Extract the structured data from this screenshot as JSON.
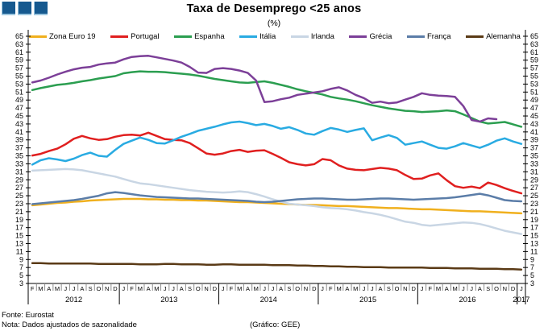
{
  "header": {
    "title": "Taxa de Desemprego <25 anos",
    "subtitle": "(%)"
  },
  "logo": {
    "square_color": "#16598F",
    "edge_color": "#9CC6DF"
  },
  "footer": {
    "source": "Fonte: Eurostat",
    "note": "Nota: Dados ajustados de sazonalidade",
    "credit": "(Gráfico: GEE)"
  },
  "chart_data": {
    "type": "line",
    "title": "Taxa de Desemprego <25 anos",
    "ylabel": "%",
    "ylim": [
      3,
      65
    ],
    "ytick_step": 2,
    "grid": false,
    "legend_position": "top",
    "x_months": [
      "F",
      "M",
      "A",
      "M",
      "J",
      "J",
      "A",
      "S",
      "O",
      "N",
      "D",
      "J",
      "F",
      "M",
      "A",
      "M",
      "J",
      "J",
      "A",
      "S",
      "O",
      "N",
      "D",
      "J",
      "F",
      "M",
      "A",
      "M",
      "J",
      "J",
      "A",
      "S",
      "O",
      "N",
      "D",
      "J",
      "F",
      "M",
      "A",
      "M",
      "J",
      "J",
      "A",
      "S",
      "O",
      "N",
      "D",
      "J",
      "F",
      "M",
      "A",
      "M",
      "J",
      "J",
      "A",
      "S",
      "O",
      "N",
      "D",
      "J"
    ],
    "x_years": [
      {
        "label": "2012",
        "start": 0,
        "count": 11
      },
      {
        "label": "2013",
        "start": 11,
        "count": 12
      },
      {
        "label": "2014",
        "start": 23,
        "count": 12
      },
      {
        "label": "2015",
        "start": 35,
        "count": 12
      },
      {
        "label": "2016",
        "start": 47,
        "count": 12
      },
      {
        "label": "2017",
        "start": 59,
        "count": 1
      }
    ],
    "series": [
      {
        "name": "Zona Euro 19",
        "color": "#F0B01E",
        "values": [
          22.6,
          22.8,
          23.0,
          23.2,
          23.3,
          23.5,
          23.6,
          23.8,
          23.9,
          24.0,
          24.1,
          24.2,
          24.2,
          24.2,
          24.1,
          24.1,
          24.0,
          24.0,
          23.9,
          23.9,
          23.8,
          23.8,
          23.7,
          23.6,
          23.5,
          23.4,
          23.4,
          23.3,
          23.2,
          23.1,
          23.0,
          22.9,
          22.8,
          22.7,
          22.7,
          22.6,
          22.5,
          22.4,
          22.4,
          22.3,
          22.2,
          22.1,
          22.0,
          21.9,
          21.9,
          21.8,
          21.7,
          21.6,
          21.6,
          21.5,
          21.4,
          21.3,
          21.2,
          21.1,
          21.1,
          21.0,
          20.9,
          20.8,
          20.7,
          20.6
        ]
      },
      {
        "name": "Portugal",
        "color": "#E01F1F",
        "values": [
          35.1,
          35.5,
          36.2,
          36.8,
          37.9,
          39.3,
          40.0,
          39.4,
          39.0,
          39.2,
          39.8,
          40.2,
          40.3,
          40.1,
          40.8,
          40.0,
          39.2,
          39.0,
          38.9,
          38.2,
          36.9,
          35.6,
          35.3,
          35.6,
          36.2,
          36.5,
          36.0,
          36.3,
          36.4,
          35.5,
          34.5,
          33.4,
          32.9,
          32.6,
          32.9,
          34.2,
          33.9,
          32.6,
          31.8,
          31.5,
          31.4,
          31.7,
          32.0,
          31.8,
          31.4,
          30.2,
          29.2,
          29.3,
          30.1,
          30.6,
          28.9,
          27.4,
          27.0,
          27.3,
          26.9,
          28.3,
          27.7,
          26.9,
          26.2,
          25.6
        ]
      },
      {
        "name": "Espanha",
        "color": "#2B9E50",
        "values": [
          51.5,
          52.0,
          52.4,
          52.8,
          53.0,
          53.3,
          53.7,
          54.0,
          54.4,
          54.7,
          55.0,
          55.7,
          56.0,
          56.2,
          56.1,
          56.1,
          56.0,
          55.8,
          55.6,
          55.4,
          55.1,
          54.7,
          54.3,
          54.0,
          53.7,
          53.4,
          53.3,
          53.5,
          53.7,
          53.3,
          52.8,
          52.3,
          51.7,
          51.2,
          50.8,
          50.4,
          49.8,
          49.4,
          49.1,
          48.7,
          48.2,
          47.7,
          47.3,
          46.9,
          46.6,
          46.3,
          46.2,
          46.0,
          46.1,
          46.2,
          46.4,
          46.2,
          45.4,
          44.5,
          43.6,
          43.1,
          43.3,
          43.5,
          42.9,
          42.3
        ]
      },
      {
        "name": "Itália",
        "color": "#29ABE2",
        "values": [
          32.8,
          33.9,
          34.4,
          34.1,
          33.7,
          34.3,
          35.2,
          35.8,
          35.0,
          34.8,
          36.5,
          38.0,
          38.8,
          39.6,
          39.0,
          38.2,
          38.1,
          38.9,
          39.8,
          40.5,
          41.3,
          41.8,
          42.3,
          42.9,
          43.4,
          43.6,
          43.2,
          42.7,
          43.0,
          42.5,
          41.8,
          42.2,
          41.5,
          40.6,
          40.3,
          41.2,
          42.0,
          41.6,
          41.0,
          41.5,
          41.9,
          38.9,
          39.6,
          40.2,
          39.5,
          37.8,
          38.2,
          38.6,
          37.8,
          37.0,
          36.8,
          37.4,
          38.2,
          37.6,
          37.0,
          37.8,
          38.8,
          39.4,
          38.6,
          38.0
        ]
      },
      {
        "name": "Irlanda",
        "color": "#C9D6E4",
        "values": [
          31.3,
          31.4,
          31.5,
          31.6,
          31.7,
          31.6,
          31.4,
          31.0,
          30.6,
          30.2,
          29.8,
          29.2,
          28.6,
          28.1,
          27.9,
          27.6,
          27.3,
          27.0,
          26.7,
          26.4,
          26.2,
          26.0,
          25.9,
          25.8,
          25.9,
          26.1,
          25.9,
          25.4,
          24.8,
          24.1,
          23.5,
          23.0,
          22.8,
          22.6,
          22.4,
          22.1,
          21.9,
          21.8,
          21.6,
          21.3,
          20.9,
          20.6,
          20.2,
          19.7,
          19.1,
          18.5,
          18.2,
          17.7,
          17.5,
          17.7,
          17.9,
          18.1,
          18.3,
          18.2,
          17.9,
          17.4,
          16.8,
          16.2,
          15.8,
          15.4
        ]
      },
      {
        "name": "Grécia",
        "color": "#7C3F98",
        "values": [
          53.4,
          53.9,
          54.6,
          55.4,
          56.1,
          56.7,
          57.1,
          57.3,
          57.9,
          58.2,
          58.4,
          59.2,
          59.8,
          60.0,
          60.1,
          59.7,
          59.3,
          58.9,
          58.4,
          57.3,
          55.9,
          55.8,
          56.8,
          57.0,
          56.8,
          56.4,
          55.8,
          53.9,
          48.5,
          48.7,
          49.2,
          49.6,
          50.3,
          50.6,
          50.9,
          51.2,
          51.8,
          52.2,
          51.4,
          50.3,
          49.5,
          48.3,
          48.6,
          48.2,
          48.4,
          49.1,
          49.8,
          50.7,
          50.3,
          50.1,
          50.0,
          49.8,
          47.5,
          44.0,
          43.6,
          44.4,
          44.2,
          null,
          null,
          null
        ]
      },
      {
        "name": "França",
        "color": "#5B7DA8",
        "values": [
          22.9,
          23.1,
          23.3,
          23.5,
          23.7,
          23.9,
          24.2,
          24.6,
          25.0,
          25.6,
          25.9,
          25.7,
          25.4,
          25.1,
          24.9,
          24.7,
          24.6,
          24.5,
          24.4,
          24.3,
          24.3,
          24.2,
          24.1,
          24.0,
          23.9,
          23.8,
          23.7,
          23.5,
          23.4,
          23.5,
          23.7,
          23.9,
          24.1,
          24.2,
          24.3,
          24.3,
          24.2,
          24.1,
          24.0,
          24.0,
          24.1,
          24.2,
          24.3,
          24.3,
          24.2,
          24.1,
          24.0,
          24.1,
          24.2,
          24.3,
          24.4,
          24.6,
          24.9,
          25.2,
          25.5,
          25.1,
          24.5,
          23.9,
          23.7,
          23.6
        ]
      },
      {
        "name": "Alemanha",
        "color": "#5A3A16",
        "values": [
          8.1,
          8.1,
          8.0,
          8.0,
          8.0,
          8.0,
          8.0,
          8.0,
          7.9,
          7.9,
          7.9,
          7.9,
          7.9,
          7.8,
          7.8,
          7.8,
          7.9,
          7.9,
          7.8,
          7.8,
          7.8,
          7.7,
          7.7,
          7.8,
          7.8,
          7.7,
          7.7,
          7.7,
          7.7,
          7.6,
          7.6,
          7.6,
          7.5,
          7.5,
          7.4,
          7.4,
          7.3,
          7.3,
          7.2,
          7.2,
          7.1,
          7.1,
          7.1,
          7.0,
          7.0,
          7.0,
          7.0,
          7.0,
          6.9,
          6.9,
          6.9,
          6.8,
          6.8,
          6.8,
          6.7,
          6.7,
          6.7,
          6.6,
          6.6,
          6.5
        ]
      }
    ]
  }
}
